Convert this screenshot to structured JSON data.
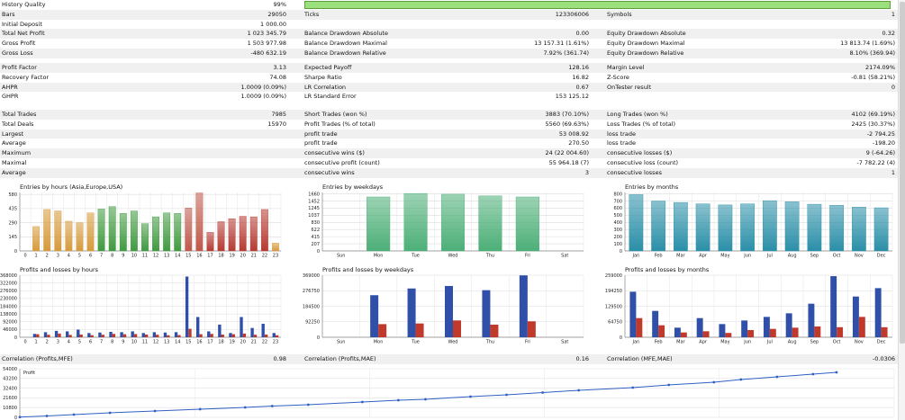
{
  "history_quality": {
    "label": "History Quality",
    "value": "99%",
    "fill": 0.99
  },
  "top_rows": [
    {
      "label": "Bars",
      "value": "29050",
      "m_label": "Ticks",
      "m_value": "123306006",
      "r_label": "Symbols",
      "r_value": "1"
    },
    {
      "label": "Initial Deposit",
      "value": "1 000.00",
      "m_label": "",
      "m_value": "",
      "r_label": "",
      "r_value": ""
    },
    {
      "label": "Total Net Profit",
      "value": "1 023 345.79",
      "m_label": "Balance Drawdown Absolute",
      "m_value": "0.00",
      "r_label": "Equity Drawdown Absolute",
      "r_value": "0.32"
    },
    {
      "label": "Gross Profit",
      "value": "1 503 977.98",
      "m_label": "Balance Drawdown Maximal",
      "m_value": "13 157.31 (1.61%)",
      "r_label": "Equity Drawdown Maximal",
      "r_value": "13 813.74 (1.69%)"
    },
    {
      "label": "Gross Loss",
      "value": "-480 632.19",
      "m_label": "Balance Drawdown Relative",
      "m_value": "7.92% (361.74)",
      "r_label": "Equity Drawdown Relative",
      "r_value": "8.10% (369.94)"
    }
  ],
  "mid_rows": [
    {
      "label": "Profit Factor",
      "value": "3.13",
      "m_label": "Expected Payoff",
      "m_value": "128.16",
      "r_label": "Margin Level",
      "r_value": "2174.09%"
    },
    {
      "label": "Recovery Factor",
      "value": "74.08",
      "m_label": "Sharpe Ratio",
      "m_value": "16.82",
      "r_label": "Z-Score",
      "r_value": "-0.81 (58.21%)"
    },
    {
      "label": "AHPR",
      "value": "1.0009 (0.09%)",
      "m_label": "LR Correlation",
      "m_value": "0.67",
      "r_label": "OnTester result",
      "r_value": "0"
    },
    {
      "label": "GHPR",
      "value": "1.0009 (0.09%)",
      "m_label": "LR Standard Error",
      "m_value": "153 125.12",
      "r_label": "",
      "r_value": ""
    }
  ],
  "trade_rows": [
    {
      "label": "Total Trades",
      "value": "7985",
      "m_label": "Short Trades (won %)",
      "m_value": "3883 (70.10%)",
      "r_label": "Long Trades (won %)",
      "r_value": "4102 (69.19%)"
    },
    {
      "label": "Total Deals",
      "value": "15970",
      "m_label": "Profit Trades (% of total)",
      "m_value": "5560 (69.63%)",
      "r_label": "Loss Trades (% of total)",
      "r_value": "2425 (30.37%)"
    },
    {
      "label": "Largest",
      "value": "",
      "m_label": "profit trade",
      "m_value": "53 008.92",
      "r_label": "loss trade",
      "r_value": "-2 794.25"
    },
    {
      "label": "Average",
      "value": "",
      "m_label": "profit trade",
      "m_value": "270.50",
      "r_label": "loss trade",
      "r_value": "-198.20"
    },
    {
      "label": "Maximum",
      "value": "",
      "m_label": "consecutive wins ($)",
      "m_value": "24 (22 004.60)",
      "r_label": "consecutive losses ($)",
      "r_value": "9 (-64.26)"
    },
    {
      "label": "Maximal",
      "value": "",
      "m_label": "consecutive profit (count)",
      "m_value": "55 964.18 (7)",
      "r_label": "consecutive loss (count)",
      "r_value": "-7 782.22 (4)"
    },
    {
      "label": "Average",
      "value": "",
      "m_label": "consecutive wins",
      "m_value": "3",
      "r_label": "consecutive losses",
      "r_value": "1"
    }
  ],
  "correlations": {
    "left_label": "Correlation (Profits,MFE)",
    "left_value": "0.98",
    "mid_label": "Correlation (Profits,MAE)",
    "mid_value": "0.16",
    "right_label": "Correlation (MFE,MAE)",
    "right_value": "-0.0306"
  },
  "chart_data": [
    {
      "id": "entries_hours",
      "type": "bar",
      "title": "Entries by hours (Asia,Europe,USA)",
      "categories": [
        "0",
        "1",
        "2",
        "3",
        "4",
        "5",
        "6",
        "7",
        "8",
        "9",
        "10",
        "11",
        "12",
        "13",
        "14",
        "15",
        "16",
        "17",
        "18",
        "19",
        "20",
        "21",
        "22",
        "23"
      ],
      "values": [
        0,
        250,
        425,
        410,
        305,
        290,
        390,
        430,
        455,
        385,
        410,
        280,
        350,
        390,
        385,
        440,
        595,
        190,
        300,
        330,
        355,
        350,
        425,
        80
      ],
      "yticks": [
        0,
        145,
        290,
        435,
        580
      ],
      "ylim": [
        0,
        600
      ],
      "colors": [
        "#a3a3a3",
        "#d69a3b",
        "#d69a3b",
        "#d69a3b",
        "#d69a3b",
        "#d69a3b",
        "#d69a3b",
        "#3f9b3f",
        "#3f9b3f",
        "#3f9b3f",
        "#3f9b3f",
        "#3f9b3f",
        "#3f9b3f",
        "#3f9b3f",
        "#3f9b3f",
        "#c0584a",
        "#c0584a",
        "#b53a32",
        "#b53a32",
        "#b53a32",
        "#b53a32",
        "#b53a32",
        "#b53a32",
        "#d69a3b"
      ]
    },
    {
      "id": "entries_weekdays",
      "type": "bar",
      "title": "Entries by weekdays",
      "categories": [
        "Sun",
        "Mon",
        "Tue",
        "Wed",
        "Thu",
        "Fri",
        "Sat"
      ],
      "values": [
        0,
        1570,
        1670,
        1650,
        1600,
        1570,
        0
      ],
      "yticks": [
        0,
        207,
        415,
        622,
        830,
        1037,
        1245,
        1452,
        1660
      ],
      "ylim": [
        0,
        1700
      ],
      "colors": [
        "#4caf77"
      ]
    },
    {
      "id": "entries_months",
      "type": "bar",
      "title": "Entries by months",
      "categories": [
        "Jan",
        "Feb",
        "Mar",
        "Apr",
        "May",
        "Jun",
        "Jul",
        "Aug",
        "Sep",
        "Oct",
        "Nov",
        "Dec"
      ],
      "values": [
        790,
        700,
        680,
        660,
        645,
        660,
        705,
        690,
        655,
        640,
        615,
        605
      ],
      "yticks": [
        0,
        100,
        200,
        300,
        400,
        500,
        600,
        700,
        800
      ],
      "ylim": [
        0,
        820
      ],
      "colors": [
        "#2a8fa8"
      ]
    },
    {
      "id": "pl_hours",
      "type": "bar",
      "title": "Profits and losses by hours",
      "categories": [
        "0",
        "1",
        "2",
        "3",
        "4",
        "5",
        "6",
        "7",
        "8",
        "9",
        "10",
        "11",
        "12",
        "13",
        "14",
        "15",
        "16",
        "17",
        "18",
        "19",
        "20",
        "21",
        "22",
        "23"
      ],
      "series": [
        {
          "name": "profit",
          "values": [
            0,
            20000,
            30000,
            38000,
            35000,
            45000,
            25000,
            28000,
            32000,
            30000,
            35000,
            25000,
            30000,
            28000,
            30000,
            360000,
            120000,
            35000,
            75000,
            25000,
            120000,
            55000,
            80000,
            25000
          ]
        },
        {
          "name": "loss",
          "values": [
            0,
            18000,
            15000,
            22000,
            14000,
            16000,
            12000,
            15000,
            20000,
            18000,
            19000,
            16000,
            15000,
            12000,
            13000,
            50000,
            18000,
            20000,
            16000,
            18000,
            22000,
            15000,
            16000,
            12000
          ]
        }
      ],
      "yticks": [
        "0",
        "46000",
        "92000",
        "138000",
        "184000",
        "230000",
        "276000",
        "322000",
        "368000"
      ],
      "ylim": [
        0,
        368000
      ],
      "colors": [
        "#2f4fa8",
        "#c0392b"
      ]
    },
    {
      "id": "pl_weekdays",
      "type": "bar",
      "title": "Profits and losses by weekdays",
      "categories": [
        "Sun",
        "Mon",
        "Tue",
        "Wed",
        "Thu",
        "Fri",
        "Sat"
      ],
      "series": [
        {
          "name": "profit",
          "values": [
            0,
            250000,
            290000,
            305000,
            280000,
            368000,
            0
          ]
        },
        {
          "name": "loss",
          "values": [
            0,
            78000,
            82000,
            100000,
            75000,
            95000,
            0
          ]
        }
      ],
      "yticks": [
        "0",
        "92250",
        "184500",
        "276750",
        "369000"
      ],
      "ylim": [
        0,
        369000
      ],
      "colors": [
        "#2f4fa8",
        "#c0392b"
      ]
    },
    {
      "id": "pl_months",
      "type": "bar",
      "title": "Profits and losses by months",
      "categories": [
        "Jan",
        "Feb",
        "Mar",
        "Apr",
        "May",
        "Jun",
        "Jul",
        "Aug",
        "Sep",
        "Oct",
        "Nov",
        "Dec"
      ],
      "series": [
        {
          "name": "profit",
          "values": [
            190000,
            110000,
            40000,
            80000,
            55000,
            70000,
            85000,
            100000,
            140000,
            255000,
            170000,
            205000
          ]
        },
        {
          "name": "loss",
          "values": [
            80000,
            50000,
            20000,
            25000,
            18000,
            30000,
            35000,
            40000,
            45000,
            42000,
            85000,
            42000
          ]
        }
      ],
      "yticks": [
        "0",
        "64750",
        "129500",
        "194250",
        "259000"
      ],
      "ylim": [
        0,
        259000
      ],
      "colors": [
        "#2f4fa8",
        "#c0392b"
      ]
    },
    {
      "id": "profit_curve",
      "type": "scatter",
      "title": "Profit",
      "x": [
        0,
        30,
        60,
        100,
        150,
        200,
        250,
        280,
        320,
        380,
        420,
        450,
        500,
        540,
        580,
        620,
        680,
        720,
        770,
        800,
        840,
        880,
        906
      ],
      "y": [
        200,
        1500,
        3000,
        5000,
        7000,
        9000,
        11000,
        12500,
        14000,
        17000,
        19000,
        20000,
        23000,
        25000,
        27500,
        30000,
        33000,
        36000,
        39000,
        42000,
        45000,
        48000,
        50000
      ],
      "xlim": [
        0,
        970
      ],
      "yticks": [
        "0",
        "10800",
        "21600",
        "32400",
        "43200",
        "54000"
      ],
      "ylim": [
        0,
        54000
      ],
      "colors": [
        "#2f5fc4"
      ]
    }
  ]
}
